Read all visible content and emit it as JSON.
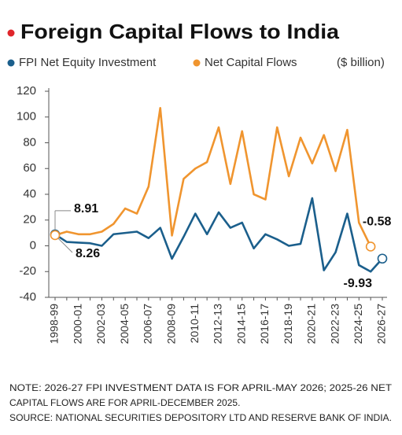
{
  "chart_data": {
    "type": "line",
    "title": "Foreign Capital Flows to India",
    "unit_label": "($ billion)",
    "categories": [
      "1998-99",
      null,
      "2000-01",
      null,
      "2002-03",
      null,
      "2004-05",
      null,
      "2006-07",
      null,
      "2008-09",
      null,
      "2010-11",
      null,
      "2012-13",
      null,
      "2014-15",
      null,
      "2016-17",
      null,
      "2018-19",
      null,
      "2020-21",
      null,
      "2022-23",
      null,
      "2024-25",
      null,
      "2026-27"
    ],
    "series": [
      {
        "name": "FPI Net Equity Investment",
        "color": "#1b5f8c",
        "values": [
          8.91,
          3,
          2.5,
          2,
          0,
          9,
          10,
          11,
          6,
          14,
          -10,
          7,
          25,
          9,
          26,
          14,
          18,
          -2,
          9,
          5,
          0,
          1.5,
          37,
          -19,
          -5,
          25,
          -15,
          -20,
          -9.93
        ],
        "value_labels": [
          "8.91",
          null,
          null,
          null,
          null,
          null,
          null,
          null,
          null,
          null,
          null,
          null,
          null,
          null,
          null,
          null,
          null,
          null,
          null,
          null,
          null,
          null,
          null,
          null,
          null,
          null,
          null,
          null,
          "-9.93"
        ]
      },
      {
        "name": "Net Capital Flows",
        "color": "#f0952f",
        "values": [
          8.26,
          11,
          9,
          9,
          11,
          17,
          29,
          25,
          46,
          107,
          8,
          52,
          60,
          65,
          92,
          48,
          89,
          40,
          36,
          92,
          54,
          84,
          64,
          86,
          58,
          90,
          18,
          -0.58,
          null
        ],
        "value_labels": [
          "8.26",
          null,
          null,
          null,
          null,
          null,
          null,
          null,
          null,
          null,
          null,
          null,
          null,
          null,
          null,
          null,
          null,
          null,
          null,
          null,
          null,
          null,
          null,
          null,
          null,
          null,
          null,
          "-0.58",
          null
        ]
      }
    ],
    "ylim": [
      -40,
      120
    ],
    "yticks": [
      -40,
      -20,
      0,
      20,
      40,
      60,
      80,
      100,
      120
    ],
    "grid": false,
    "notes": [
      "NOTE: 2026-27 FPI INVESTMENT DATA IS FOR APRIL-MAY 2026; 2025-26 NET",
      "CAPITAL FLOWS ARE FOR APRIL-DECEMBER 2025.",
      "SOURCE: NATIONAL SECURITIES DEPOSITORY LTD AND RESERVE BANK OF INDIA."
    ]
  }
}
